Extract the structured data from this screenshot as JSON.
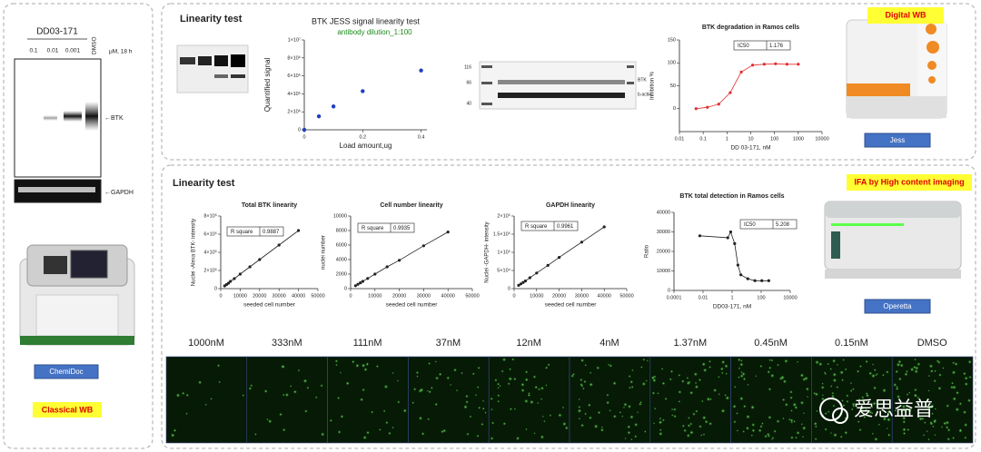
{
  "classical_wb": {
    "compound": "DD03-171",
    "concentrations": [
      "0.1",
      "0.01",
      "0.001"
    ],
    "control": "DMSO",
    "unit": "μM, 18 h",
    "bands": [
      "←BTK",
      "←GAPDH"
    ],
    "instrument": "ChemiDoc",
    "label": "Classical WB"
  },
  "digital_wb": {
    "section": "Linearity test",
    "label": "Digital WB",
    "instrument": "Jess",
    "blot_markers": [
      "116",
      "66",
      "40"
    ],
    "blot_targets": [
      "BTK",
      "b-actin"
    ],
    "charts": [
      {
        "type": "scatter",
        "title": "BTK  JESS  signal linearity  test",
        "subtitle": "antibody dilution_1:100",
        "x_label": "Load amount,ug",
        "y_label": "Quantified signal",
        "color": "#1f3fbf",
        "line": false,
        "x": [
          0,
          0.05,
          0.1,
          0.2,
          0.4
        ],
        "values": [
          0,
          1500000,
          2600000,
          4300000,
          6600000
        ],
        "xlim": [
          0,
          0.42
        ],
        "ylim": [
          0,
          10000000
        ],
        "xticks": [
          0,
          0.2,
          0.4
        ],
        "yticks": [
          0,
          {
            "value": 2000000,
            "label": "2×10⁶"
          },
          {
            "value": 4000000,
            "label": "4×10⁶"
          },
          {
            "value": 6000000,
            "label": "6×10⁶"
          },
          {
            "value": 8000000,
            "label": "8×10⁶"
          },
          {
            "value": 10000000,
            "label": "1×10⁷"
          }
        ]
      },
      {
        "type": "line",
        "title": "BTK degradation in Ramos cells",
        "x_label": "DD 03-171, nM",
        "y_label": "Inhibition %",
        "color": "#e03030",
        "line": true,
        "x_log": true,
        "x": [
          0.05,
          0.15,
          0.45,
          1.37,
          4,
          12,
          37,
          111,
          333,
          1000
        ],
        "values": [
          0,
          3,
          10,
          35,
          80,
          95,
          97,
          98,
          97,
          97
        ],
        "xlim": [
          0.01,
          10000
        ],
        "ylim": [
          -50,
          150
        ],
        "xticks": [
          0.01,
          0.1,
          1,
          10,
          100,
          1000,
          10000
        ],
        "yticks": [
          0,
          50,
          100,
          150
        ],
        "annotation": {
          "label": "IC50",
          "value": 1.176
        }
      }
    ]
  },
  "ifa": {
    "section": "Linearity test",
    "label": "IFA by High content imaging",
    "instrument": "Operetta",
    "concentrations": [
      "1000nM",
      "333nM",
      "111nM",
      "37nM",
      "12nM",
      "4nM",
      "1.37nM",
      "0.45nM",
      "0.15nM",
      "DMSO"
    ],
    "charts": [
      {
        "type": "line",
        "title": "Total BTK linearity",
        "x_label": "seeded cell number",
        "y_label": "Nuclei -Alexa BTK- intensity",
        "color": "#222",
        "line": true,
        "x": [
          2000,
          3000,
          4000,
          5000,
          7000,
          10000,
          15000,
          20000,
          30000,
          40000
        ],
        "values": [
          30000,
          45000,
          60000,
          80000,
          110000,
          160000,
          240000,
          320000,
          480000,
          640000
        ],
        "xlim": [
          0,
          50000
        ],
        "ylim": [
          0,
          800000
        ],
        "xticks": [
          0,
          10000,
          20000,
          30000,
          40000,
          50000
        ],
        "yticks": [
          0,
          {
            "value": 200000,
            "label": "2×10⁵"
          },
          {
            "value": 400000,
            "label": "4×10⁵"
          },
          {
            "value": 600000,
            "label": "6×10⁵"
          },
          {
            "value": 800000,
            "label": "8×10⁵"
          }
        ],
        "annotation": {
          "label": "R square",
          "value": 0.9887
        }
      },
      {
        "type": "line",
        "title": "Cell number linearity",
        "x_label": "seeded cell number",
        "y_label": "nuclei number",
        "color": "#222",
        "line": true,
        "x": [
          2000,
          3000,
          4000,
          5000,
          7000,
          10000,
          15000,
          20000,
          30000,
          40000
        ],
        "values": [
          400,
          600,
          800,
          1000,
          1400,
          2000,
          3000,
          3900,
          5900,
          7800
        ],
        "xlim": [
          0,
          50000
        ],
        "ylim": [
          0,
          10000
        ],
        "xticks": [
          0,
          10000,
          20000,
          30000,
          40000,
          50000
        ],
        "yticks": [
          0,
          2000,
          4000,
          6000,
          8000,
          10000
        ],
        "annotation": {
          "label": "R square",
          "value": 0.9935
        }
      },
      {
        "type": "line",
        "title": "GAPDH linearity",
        "x_label": "seeded cell number",
        "y_label": "Nuclei -GAPDH- intensity",
        "color": "#222",
        "line": true,
        "x": [
          2000,
          3000,
          4000,
          5000,
          7000,
          10000,
          15000,
          20000,
          30000,
          40000
        ],
        "values": [
          9000,
          13000,
          17000,
          21000,
          30000,
          43000,
          64000,
          86000,
          128000,
          170000
        ],
        "xlim": [
          0,
          50000
        ],
        "ylim": [
          0,
          200000
        ],
        "xticks": [
          0,
          10000,
          20000,
          30000,
          40000,
          50000
        ],
        "yticks": [
          0,
          {
            "value": 50000,
            "label": "5×10⁴"
          },
          {
            "value": 100000,
            "label": "1×10⁵"
          },
          {
            "value": 150000,
            "label": "1.5×10⁵"
          },
          {
            "value": 200000,
            "label": "2×10⁵"
          }
        ],
        "annotation": {
          "label": "R square",
          "value": 0.9961
        }
      },
      {
        "type": "line",
        "title": "BTK total detection in Ramos cells",
        "x_label": "DD03-171, nM",
        "y_label": "Ratio",
        "color": "#222",
        "line": true,
        "x_log": true,
        "x": [
          0.006,
          0.5,
          0.8,
          1.5,
          2.5,
          4,
          12,
          37,
          111,
          333
        ],
        "values": [
          28000,
          27000,
          30000,
          24000,
          13000,
          8000,
          6000,
          5000,
          5000,
          5000
        ],
        "xlim": [
          0.0001,
          10000
        ],
        "ylim": [
          0,
          40000
        ],
        "xticks": [
          0.0001,
          0.01,
          1,
          100,
          10000
        ],
        "yticks": [
          0,
          10000,
          20000,
          30000,
          40000
        ],
        "annotation": {
          "label": "IC50",
          "value": 5.208
        }
      }
    ]
  },
  "watermark": "爱思益普"
}
